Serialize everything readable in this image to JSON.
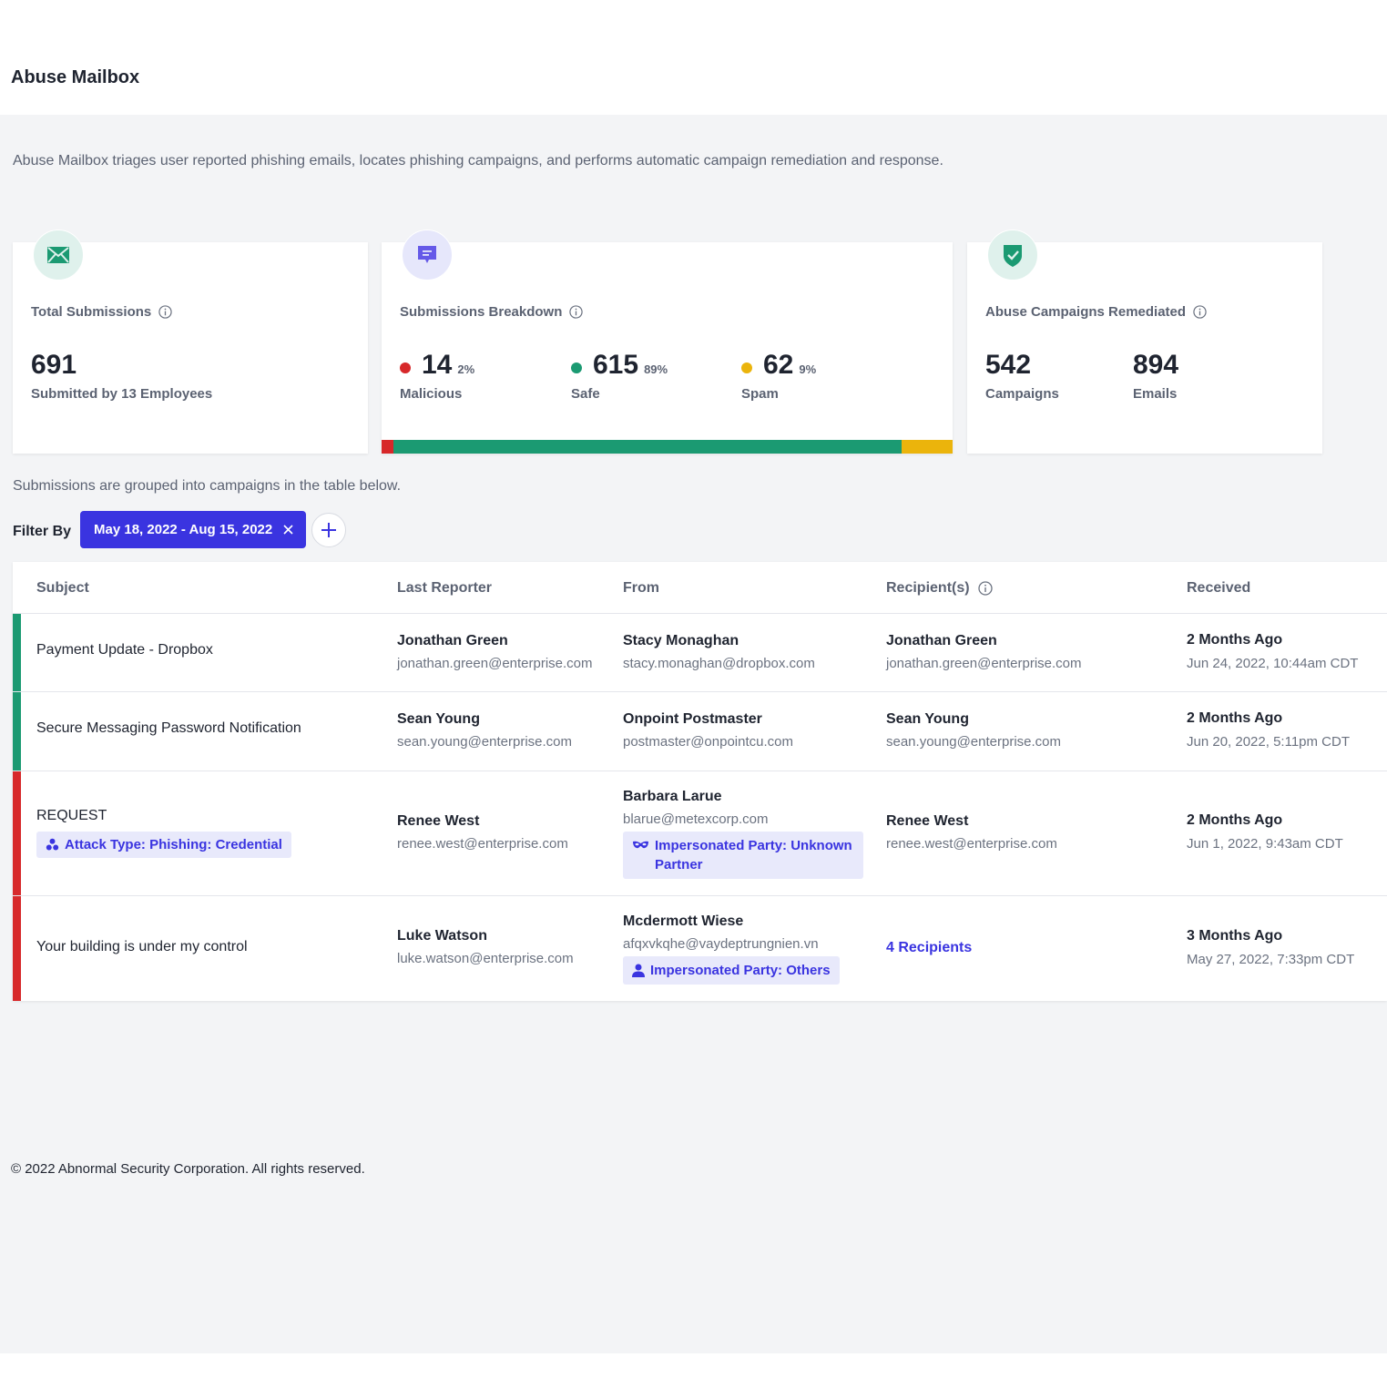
{
  "header": {
    "title": "Abuse Mailbox"
  },
  "description": "Abuse Mailbox triages user reported phishing emails, locates phishing campaigns, and performs automatic campaign remediation and response.",
  "cards": {
    "total": {
      "icon": "envelope-icon",
      "label": "Total Submissions",
      "value": "691",
      "sub": "Submitted by 13 Employees"
    },
    "breakdown": {
      "icon": "message-icon",
      "label": "Submissions Breakdown",
      "malicious": {
        "value": "14",
        "pct": "2%",
        "label": "Malicious",
        "color": "#d7282a",
        "fraction": 0.02
      },
      "safe": {
        "value": "615",
        "pct": "89%",
        "label": "Safe",
        "color": "#1b9a72",
        "fraction": 0.89
      },
      "spam": {
        "value": "62",
        "pct": "9%",
        "label": "Spam",
        "color": "#ebb40c",
        "fraction": 0.09
      }
    },
    "remediated": {
      "icon": "shield-check-icon",
      "label": "Abuse Campaigns Remediated",
      "campaigns": {
        "value": "542",
        "label": "Campaigns"
      },
      "emails": {
        "value": "894",
        "label": "Emails"
      }
    }
  },
  "grouped_note": "Submissions are grouped into campaigns in the table below.",
  "filter": {
    "label": "Filter By",
    "chip": "May 18, 2022 - Aug 15, 2022"
  },
  "table": {
    "columns": {
      "subject": "Subject",
      "reporter": "Last Reporter",
      "from": "From",
      "recipients": "Recipient(s)",
      "received": "Received"
    },
    "rows": [
      {
        "status": "safe",
        "subject": "Payment Update - Dropbox",
        "reporter_name": "Jonathan Green",
        "reporter_email": "jonathan.green@enterprise.com",
        "from_name": "Stacy Monaghan",
        "from_email": "stacy.monaghan@dropbox.com",
        "recipient_name": "Jonathan Green",
        "recipient_email": "jonathan.green@enterprise.com",
        "received_ago": "2 Months Ago",
        "received_date": "Jun 24, 2022, 10:44am CDT"
      },
      {
        "status": "safe",
        "subject": "Secure Messaging Password Notification",
        "reporter_name": "Sean Young",
        "reporter_email": "sean.young@enterprise.com",
        "from_name": "Onpoint Postmaster",
        "from_email": "postmaster@onpointcu.com",
        "recipient_name": "Sean Young",
        "recipient_email": "sean.young@enterprise.com",
        "received_ago": "2 Months Ago",
        "received_date": "Jun 20, 2022, 5:11pm CDT"
      },
      {
        "status": "malicious",
        "subject": "REQUEST",
        "attack_tag": "Attack Type: Phishing: Credential",
        "reporter_name": "Renee West",
        "reporter_email": "renee.west@enterprise.com",
        "from_name": "Barbara Larue",
        "from_email": "blarue@metexcorp.com",
        "from_tag": "Impersonated Party: Unknown Partner",
        "recipient_name": "Renee West",
        "recipient_email": "renee.west@enterprise.com",
        "received_ago": "2 Months Ago",
        "received_date": "Jun 1, 2022, 9:43am CDT"
      },
      {
        "status": "malicious",
        "subject": "Your building is under my control",
        "reporter_name": "Luke Watson",
        "reporter_email": "luke.watson@enterprise.com",
        "from_name": "Mcdermott Wiese",
        "from_email": "afqxvkqhe@vaydeptrungnien.vn",
        "from_tag": "Impersonated Party: Others",
        "recipients_link": "4 Recipients",
        "received_ago": "3 Months Ago",
        "received_date": "May 27, 2022, 7:33pm CDT"
      }
    ]
  },
  "footer": "© 2022 Abnormal Security Corporation. All rights reserved.",
  "colors": {
    "accent": "#3a34e0",
    "safe": "#1b9a72",
    "malicious": "#d7282a",
    "spam": "#ebb40c"
  }
}
